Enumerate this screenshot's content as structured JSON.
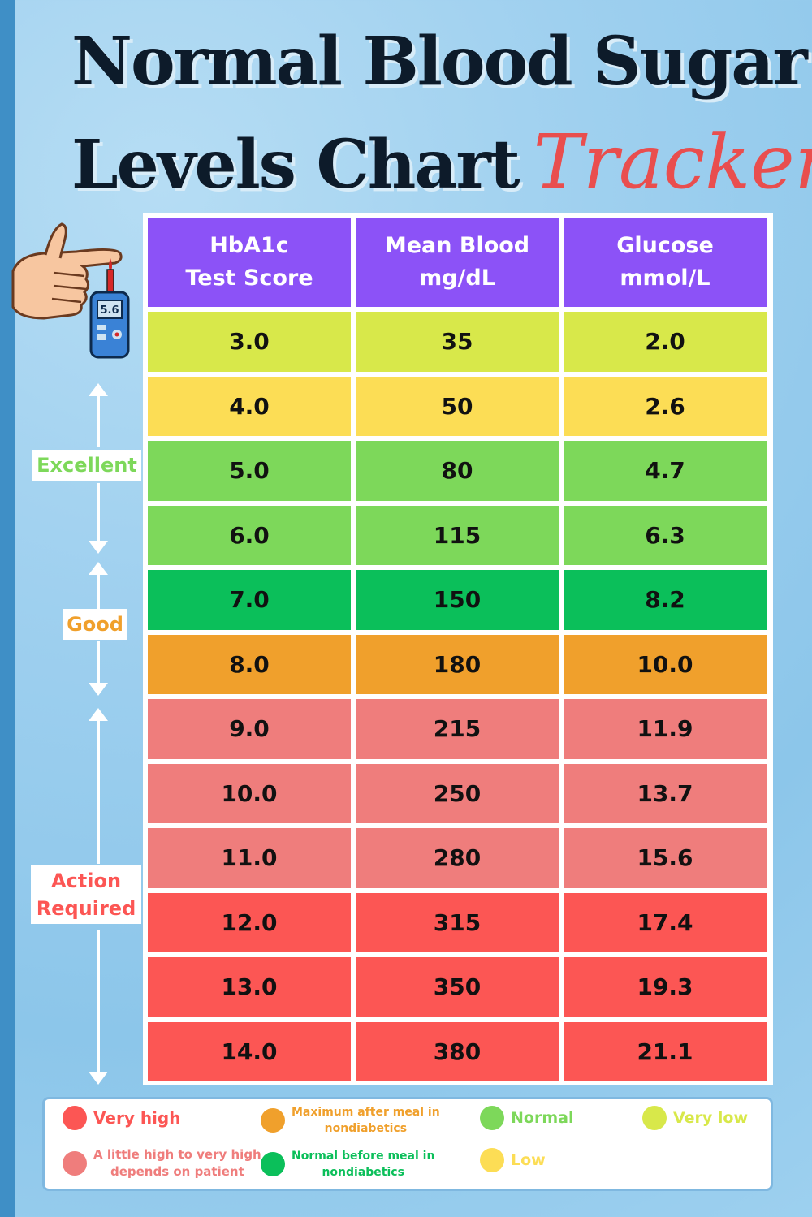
{
  "title": {
    "line1": "Normal Blood Sugar",
    "line2": "Levels Chart",
    "accent": "Tracker"
  },
  "meter_reading": "5.6",
  "table": {
    "headers": [
      [
        "HbA1c",
        "Test Score"
      ],
      [
        "Mean Blood",
        "mg/dL"
      ],
      [
        "Glucose",
        "mmol/L"
      ]
    ],
    "rows": [
      {
        "hba1c": "3.0",
        "mgdl": "35",
        "mmol": "2.0",
        "color": "#d8e84a"
      },
      {
        "hba1c": "4.0",
        "mgdl": "50",
        "mmol": "2.6",
        "color": "#fcdd55"
      },
      {
        "hba1c": "5.0",
        "mgdl": "80",
        "mmol": "4.7",
        "color": "#7dd85a"
      },
      {
        "hba1c": "6.0",
        "mgdl": "115",
        "mmol": "6.3",
        "color": "#7dd85a"
      },
      {
        "hba1c": "7.0",
        "mgdl": "150",
        "mmol": "8.2",
        "color": "#0bbf5a"
      },
      {
        "hba1c": "8.0",
        "mgdl": "180",
        "mmol": "10.0",
        "color": "#f0a02c"
      },
      {
        "hba1c": "9.0",
        "mgdl": "215",
        "mmol": "11.9",
        "color": "#ef7d7c"
      },
      {
        "hba1c": "10.0",
        "mgdl": "250",
        "mmol": "13.7",
        "color": "#ef7d7c"
      },
      {
        "hba1c": "11.0",
        "mgdl": "280",
        "mmol": "15.6",
        "color": "#ef7d7c"
      },
      {
        "hba1c": "12.0",
        "mgdl": "315",
        "mmol": "17.4",
        "color": "#fc5654"
      },
      {
        "hba1c": "13.0",
        "mgdl": "350",
        "mmol": "19.3",
        "color": "#fc5654"
      },
      {
        "hba1c": "14.0",
        "mgdl": "380",
        "mmol": "21.1",
        "color": "#fc5654"
      }
    ],
    "header_color": "#8c52f7"
  },
  "zones": {
    "excellent": {
      "label": "Excellent",
      "color": "#7dd85a"
    },
    "good": {
      "label": "Good",
      "color": "#f0a02c"
    },
    "action": {
      "label": [
        "Action",
        "Required"
      ],
      "color": "#fc5654"
    }
  },
  "legend": [
    {
      "label": [
        "Very high"
      ],
      "color": "#fc5654"
    },
    {
      "label": [
        "Maximum after meal in",
        "nondiabetics"
      ],
      "color": "#f0a02c"
    },
    {
      "label": [
        "Normal"
      ],
      "color": "#7dd85a"
    },
    {
      "label": [
        "Very low"
      ],
      "color": "#d8e84a"
    },
    {
      "label": [
        "A little high to very high",
        "depends on patient"
      ],
      "color": "#ef7d7c"
    },
    {
      "label": [
        "Normal before meal in",
        "nondiabetics"
      ],
      "color": "#0bbf5a"
    },
    {
      "label": [
        "Low"
      ],
      "color": "#fcdd55"
    }
  ]
}
